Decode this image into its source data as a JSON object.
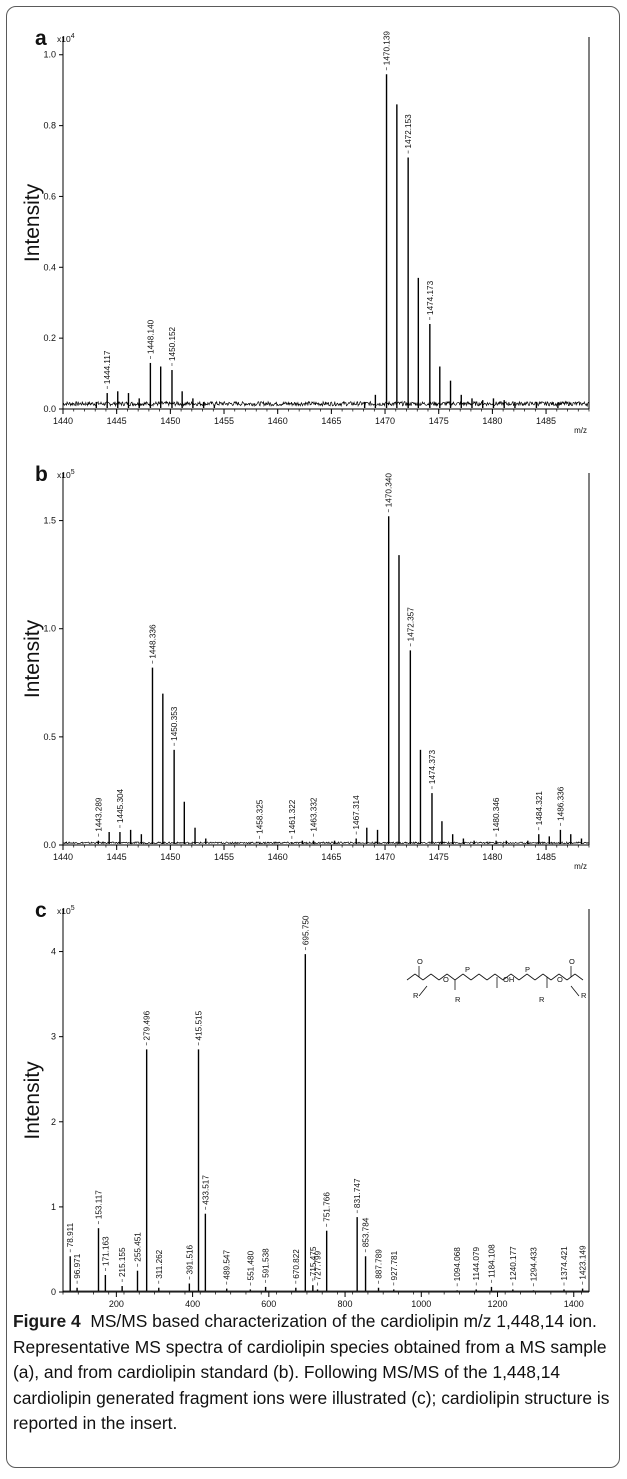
{
  "figure": {
    "caption_label": "Figure 4",
    "caption_text": "MS/MS based characterization of the cardiolipin m/z 1,448,14 ion. Representative MS spectra of cardiolipin species obtained from a MS sample (a), and from cardiolipin standard (b). Following MS/MS of the 1,448,14 cardiolipin generated fragment ions were illustrated (c); cardiolipin structure is reported in the insert."
  },
  "colors": {
    "trace": "#000000",
    "axis": "#000000",
    "text": "#111111"
  },
  "chart_data": [
    {
      "panel": "a",
      "type": "line",
      "multiplier": "x10",
      "multiplier_exp": "4",
      "ylabel": "Intensity",
      "xlabel": "m/z",
      "xlim": [
        1440,
        1489
      ],
      "ylim": [
        0,
        1.05
      ],
      "xticks": [
        1440,
        1445,
        1450,
        1455,
        1460,
        1465,
        1470,
        1475,
        1480,
        1485
      ],
      "yticks": [
        0.0,
        0.2,
        0.4,
        0.6,
        0.8,
        1.0
      ],
      "ytick_labels": [
        "0.0",
        "0.2",
        "0.4",
        "0.6",
        "0.8",
        "1.0"
      ],
      "noise": 0.015,
      "peaks": [
        {
          "x": 1443.1,
          "y": 0.02
        },
        {
          "x": 1444.117,
          "y": 0.045
        },
        {
          "x": 1445.1,
          "y": 0.05
        },
        {
          "x": 1446.1,
          "y": 0.045
        },
        {
          "x": 1447.1,
          "y": 0.03
        },
        {
          "x": 1448.14,
          "y": 0.13
        },
        {
          "x": 1449.1,
          "y": 0.12
        },
        {
          "x": 1450.152,
          "y": 0.11
        },
        {
          "x": 1451.1,
          "y": 0.05
        },
        {
          "x": 1452.1,
          "y": 0.03
        },
        {
          "x": 1453.1,
          "y": 0.02
        },
        {
          "x": 1454.1,
          "y": 0.01
        },
        {
          "x": 1468.1,
          "y": 0.02
        },
        {
          "x": 1469.1,
          "y": 0.04
        },
        {
          "x": 1470.139,
          "y": 0.945
        },
        {
          "x": 1471.1,
          "y": 0.86
        },
        {
          "x": 1472.153,
          "y": 0.71
        },
        {
          "x": 1473.1,
          "y": 0.37
        },
        {
          "x": 1474.173,
          "y": 0.24
        },
        {
          "x": 1475.1,
          "y": 0.12
        },
        {
          "x": 1476.1,
          "y": 0.08
        },
        {
          "x": 1477.1,
          "y": 0.04
        },
        {
          "x": 1478.1,
          "y": 0.03
        },
        {
          "x": 1479.1,
          "y": 0.025
        },
        {
          "x": 1480.1,
          "y": 0.03
        },
        {
          "x": 1481.1,
          "y": 0.025
        },
        {
          "x": 1482.1,
          "y": 0.02
        },
        {
          "x": 1484.1,
          "y": 0.02
        },
        {
          "x": 1486.1,
          "y": 0.015
        }
      ],
      "annotations": [
        {
          "x": 1444.117,
          "y": 0.045,
          "label": "1444.117"
        },
        {
          "x": 1448.14,
          "y": 0.13,
          "label": "1448.140"
        },
        {
          "x": 1450.152,
          "y": 0.11,
          "label": "1450.152"
        },
        {
          "x": 1470.139,
          "y": 0.945,
          "label": "1470.139"
        },
        {
          "x": 1472.153,
          "y": 0.71,
          "label": "1472.153"
        },
        {
          "x": 1474.173,
          "y": 0.24,
          "label": "1474.173"
        }
      ]
    },
    {
      "panel": "b",
      "type": "line",
      "multiplier": "x10",
      "multiplier_exp": "5",
      "ylabel": "Intensity",
      "xlabel": "m/z",
      "xlim": [
        1440,
        1489
      ],
      "ylim": [
        0,
        1.72
      ],
      "xticks": [
        1440,
        1445,
        1450,
        1455,
        1460,
        1465,
        1470,
        1475,
        1480,
        1485
      ],
      "yticks": [
        0.0,
        0.5,
        1.0,
        1.5
      ],
      "ytick_labels": [
        "0.0",
        "0.5",
        "1.0",
        "1.5"
      ],
      "noise": 0.01,
      "peaks": [
        {
          "x": 1443.289,
          "y": 0.02
        },
        {
          "x": 1444.3,
          "y": 0.06
        },
        {
          "x": 1445.304,
          "y": 0.06
        },
        {
          "x": 1446.3,
          "y": 0.07
        },
        {
          "x": 1447.3,
          "y": 0.05
        },
        {
          "x": 1448.336,
          "y": 0.82
        },
        {
          "x": 1449.3,
          "y": 0.7
        },
        {
          "x": 1450.353,
          "y": 0.44
        },
        {
          "x": 1451.3,
          "y": 0.2
        },
        {
          "x": 1452.3,
          "y": 0.08
        },
        {
          "x": 1453.3,
          "y": 0.03
        },
        {
          "x": 1458.325,
          "y": 0.01
        },
        {
          "x": 1461.322,
          "y": 0.01
        },
        {
          "x": 1462.3,
          "y": 0.02
        },
        {
          "x": 1463.332,
          "y": 0.02
        },
        {
          "x": 1465.3,
          "y": 0.02
        },
        {
          "x": 1467.314,
          "y": 0.03
        },
        {
          "x": 1468.3,
          "y": 0.08
        },
        {
          "x": 1469.3,
          "y": 0.07
        },
        {
          "x": 1470.34,
          "y": 1.52
        },
        {
          "x": 1471.3,
          "y": 1.34
        },
        {
          "x": 1472.357,
          "y": 0.9
        },
        {
          "x": 1473.3,
          "y": 0.44
        },
        {
          "x": 1474.373,
          "y": 0.24
        },
        {
          "x": 1475.3,
          "y": 0.11
        },
        {
          "x": 1476.3,
          "y": 0.05
        },
        {
          "x": 1477.3,
          "y": 0.03
        },
        {
          "x": 1478.3,
          "y": 0.02
        },
        {
          "x": 1480.346,
          "y": 0.02
        },
        {
          "x": 1481.3,
          "y": 0.02
        },
        {
          "x": 1483.3,
          "y": 0.02
        },
        {
          "x": 1484.321,
          "y": 0.05
        },
        {
          "x": 1485.3,
          "y": 0.04
        },
        {
          "x": 1486.336,
          "y": 0.07
        },
        {
          "x": 1487.3,
          "y": 0.05
        },
        {
          "x": 1488.3,
          "y": 0.03
        }
      ],
      "annotations": [
        {
          "x": 1443.289,
          "y": 0.02,
          "label": "1443.289"
        },
        {
          "x": 1445.304,
          "y": 0.06,
          "label": "1445.304"
        },
        {
          "x": 1448.336,
          "y": 0.82,
          "label": "1448.336"
        },
        {
          "x": 1450.353,
          "y": 0.44,
          "label": "1450.353"
        },
        {
          "x": 1458.325,
          "y": 0.01,
          "label": "1458.325"
        },
        {
          "x": 1461.322,
          "y": 0.01,
          "label": "1461.322"
        },
        {
          "x": 1463.332,
          "y": 0.02,
          "label": "1463.332"
        },
        {
          "x": 1467.314,
          "y": 0.03,
          "label": "1467.314"
        },
        {
          "x": 1470.34,
          "y": 1.52,
          "label": "1470.340"
        },
        {
          "x": 1472.357,
          "y": 0.9,
          "label": "1472.357"
        },
        {
          "x": 1474.373,
          "y": 0.24,
          "label": "1474.373"
        },
        {
          "x": 1480.346,
          "y": 0.02,
          "label": "1480.346"
        },
        {
          "x": 1484.321,
          "y": 0.05,
          "label": "1484.321"
        },
        {
          "x": 1486.336,
          "y": 0.07,
          "label": "1486.336"
        }
      ]
    },
    {
      "panel": "c",
      "type": "bar",
      "multiplier": "x10",
      "multiplier_exp": "5",
      "ylabel": "Intensity",
      "xlabel": "m/z",
      "xlim": [
        60,
        1440
      ],
      "ylim": [
        0,
        4.5
      ],
      "xticks": [
        200,
        400,
        600,
        800,
        1000,
        1200,
        1400
      ],
      "yticks": [
        0,
        1,
        2,
        3,
        4
      ],
      "ytick_labels": [
        "0",
        "1",
        "2",
        "3",
        "4"
      ],
      "noise": 0,
      "peaks": [
        {
          "x": 78.911,
          "y": 0.42
        },
        {
          "x": 96.971,
          "y": 0.05
        },
        {
          "x": 153.117,
          "y": 0.75
        },
        {
          "x": 171.163,
          "y": 0.2
        },
        {
          "x": 215.155,
          "y": 0.07
        },
        {
          "x": 255.451,
          "y": 0.25
        },
        {
          "x": 279.496,
          "y": 2.85
        },
        {
          "x": 311.262,
          "y": 0.05
        },
        {
          "x": 391.516,
          "y": 0.1
        },
        {
          "x": 415.515,
          "y": 2.85
        },
        {
          "x": 433.517,
          "y": 0.92
        },
        {
          "x": 489.547,
          "y": 0.04
        },
        {
          "x": 551.48,
          "y": 0.03
        },
        {
          "x": 591.538,
          "y": 0.06
        },
        {
          "x": 670.822,
          "y": 0.05
        },
        {
          "x": 695.75,
          "y": 3.97
        },
        {
          "x": 715.475,
          "y": 0.08
        },
        {
          "x": 727.799,
          "y": 0.03
        },
        {
          "x": 751.766,
          "y": 0.72
        },
        {
          "x": 831.747,
          "y": 0.88
        },
        {
          "x": 853.784,
          "y": 0.42
        },
        {
          "x": 887.789,
          "y": 0.05
        },
        {
          "x": 927.781,
          "y": 0.03
        },
        {
          "x": 1094.068,
          "y": 0.02
        },
        {
          "x": 1144.079,
          "y": 0.03
        },
        {
          "x": 1184.108,
          "y": 0.06
        },
        {
          "x": 1240.177,
          "y": 0.03
        },
        {
          "x": 1294.433,
          "y": 0.02
        },
        {
          "x": 1374.421,
          "y": 0.03
        },
        {
          "x": 1423.149,
          "y": 0.04
        }
      ],
      "annotations": [
        {
          "x": 78.911,
          "y": 0.42,
          "label": "78.911"
        },
        {
          "x": 96.971,
          "y": 0.05,
          "label": "96.971"
        },
        {
          "x": 153.117,
          "y": 0.75,
          "label": "153.117"
        },
        {
          "x": 171.163,
          "y": 0.2,
          "label": "171.163"
        },
        {
          "x": 215.155,
          "y": 0.07,
          "label": "215.155"
        },
        {
          "x": 255.451,
          "y": 0.25,
          "label": "255.451"
        },
        {
          "x": 279.496,
          "y": 2.85,
          "label": "279.496"
        },
        {
          "x": 311.262,
          "y": 0.05,
          "label": "311.262"
        },
        {
          "x": 391.516,
          "y": 0.1,
          "label": "391.516"
        },
        {
          "x": 415.515,
          "y": 2.85,
          "label": "415.515"
        },
        {
          "x": 433.517,
          "y": 0.92,
          "label": "433.517"
        },
        {
          "x": 489.547,
          "y": 0.04,
          "label": "489.547"
        },
        {
          "x": 551.48,
          "y": 0.03,
          "label": "551.480"
        },
        {
          "x": 591.538,
          "y": 0.06,
          "label": "591.538"
        },
        {
          "x": 670.822,
          "y": 0.05,
          "label": "670.822"
        },
        {
          "x": 695.75,
          "y": 3.97,
          "label": "695.750"
        },
        {
          "x": 715.475,
          "y": 0.08,
          "label": "715.475"
        },
        {
          "x": 727.799,
          "y": 0.03,
          "label": "727.799"
        },
        {
          "x": 751.766,
          "y": 0.72,
          "label": "751.766"
        },
        {
          "x": 831.747,
          "y": 0.88,
          "label": "831.747"
        },
        {
          "x": 853.784,
          "y": 0.42,
          "label": "853.784"
        },
        {
          "x": 887.789,
          "y": 0.05,
          "label": "887.789"
        },
        {
          "x": 927.781,
          "y": 0.03,
          "label": "927.781"
        },
        {
          "x": 1094.068,
          "y": 0.02,
          "label": "1094.068"
        },
        {
          "x": 1144.079,
          "y": 0.03,
          "label": "1144.079"
        },
        {
          "x": 1184.108,
          "y": 0.06,
          "label": "1184.108"
        },
        {
          "x": 1240.177,
          "y": 0.03,
          "label": "1240.177"
        },
        {
          "x": 1294.433,
          "y": 0.02,
          "label": "1294.433"
        },
        {
          "x": 1374.421,
          "y": 0.03,
          "label": "1374.421"
        },
        {
          "x": 1423.149,
          "y": 0.04,
          "label": "1423.149"
        }
      ],
      "inset_labels": [
        "O",
        "P",
        "OH",
        "R"
      ]
    }
  ]
}
